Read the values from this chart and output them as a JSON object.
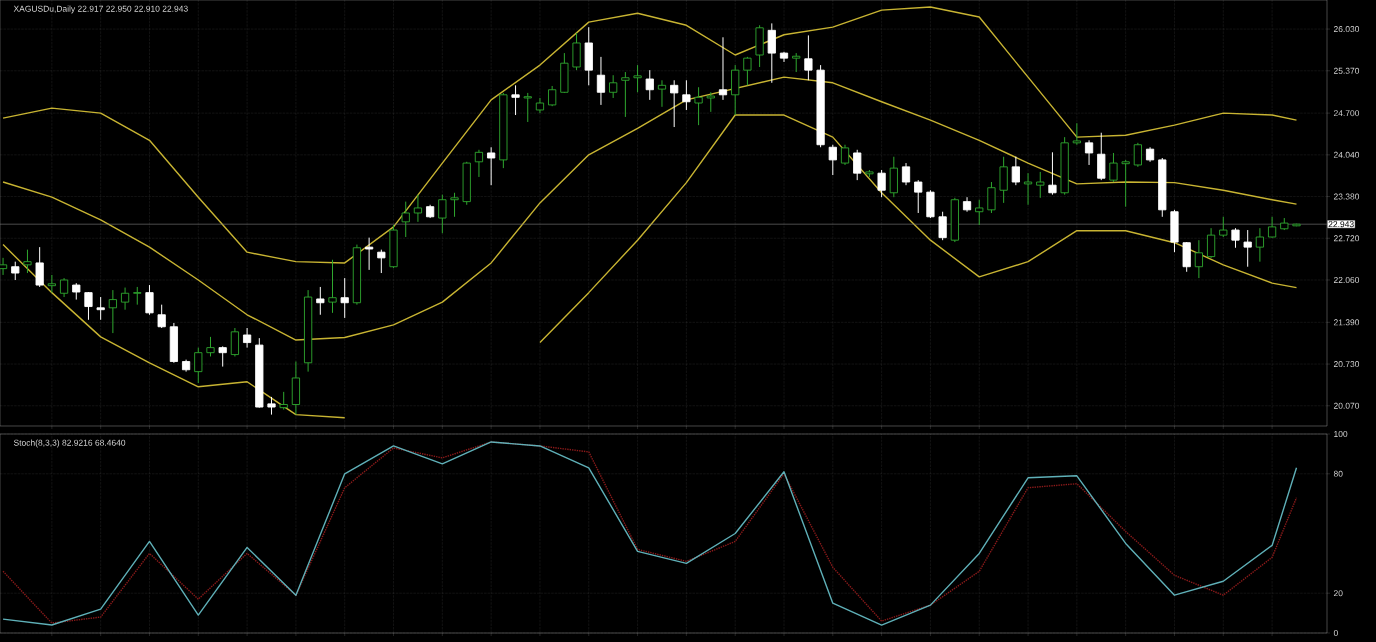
{
  "chart_data": [
    {
      "type": "candlestick",
      "title": "XAGUSDu,Daily 22.917 22.950 22.910 22.943",
      "categories": [
        null,
        null,
        null,
        null,
        null,
        null,
        null,
        null,
        null,
        null,
        null,
        null,
        null,
        null,
        null,
        null,
        null,
        null,
        null,
        null,
        null,
        null,
        null,
        null,
        null,
        null,
        null,
        null,
        null,
        null,
        null,
        null,
        null,
        null,
        null,
        null,
        null,
        null,
        null,
        null,
        null,
        null,
        null,
        null,
        null,
        null,
        null,
        null,
        null,
        null,
        null,
        null,
        null,
        null,
        null,
        null,
        null,
        null,
        null,
        null,
        null,
        null,
        null,
        null,
        null,
        null,
        null,
        null,
        null,
        null,
        null,
        null,
        null,
        null,
        null,
        null,
        null,
        null,
        null,
        null,
        null,
        null,
        null,
        null,
        null,
        null,
        null,
        null,
        null,
        null,
        null,
        null,
        null,
        null,
        null,
        null,
        null,
        null,
        null,
        null,
        null,
        null,
        null,
        null,
        null,
        null,
        null
      ],
      "ohlc": [
        [
          22.24,
          22.41,
          22.14,
          22.3
        ],
        [
          22.27,
          22.35,
          22.06,
          22.17
        ],
        [
          22.3,
          22.54,
          22.17,
          22.35
        ],
        [
          22.33,
          22.58,
          21.95,
          21.98
        ],
        [
          21.97,
          22.14,
          21.86,
          22.0
        ],
        [
          21.85,
          22.09,
          21.79,
          22.06
        ],
        [
          21.98,
          22.01,
          21.75,
          21.87
        ],
        [
          21.86,
          21.87,
          21.43,
          21.64
        ],
        [
          21.62,
          21.79,
          21.43,
          21.59
        ],
        [
          21.62,
          21.9,
          21.22,
          21.75
        ],
        [
          21.71,
          21.94,
          21.59,
          21.85
        ],
        [
          21.85,
          21.95,
          21.67,
          21.86
        ],
        [
          21.86,
          21.98,
          21.51,
          21.54
        ],
        [
          21.51,
          21.67,
          21.3,
          21.32
        ],
        [
          21.32,
          21.38,
          20.75,
          20.77
        ],
        [
          20.77,
          20.8,
          20.61,
          20.64
        ],
        [
          20.61,
          20.99,
          20.43,
          20.91
        ],
        [
          20.91,
          21.16,
          20.85,
          20.99
        ],
        [
          20.99,
          21.01,
          20.69,
          20.91
        ],
        [
          20.88,
          21.3,
          20.85,
          21.24
        ],
        [
          21.19,
          21.3,
          20.99,
          21.07
        ],
        [
          21.03,
          21.14,
          20.04,
          20.05
        ],
        [
          20.1,
          20.21,
          19.93,
          20.05
        ],
        [
          20.04,
          20.29,
          20.01,
          20.09
        ],
        [
          20.09,
          20.77,
          19.93,
          20.51
        ],
        [
          20.75,
          21.9,
          20.61,
          21.79
        ],
        [
          21.76,
          21.95,
          21.51,
          21.7
        ],
        [
          21.71,
          22.38,
          21.54,
          21.78
        ],
        [
          21.78,
          22.09,
          21.46,
          21.7
        ],
        [
          21.7,
          22.62,
          21.67,
          22.57
        ],
        [
          22.58,
          22.73,
          22.22,
          22.55
        ],
        [
          22.5,
          22.54,
          22.17,
          22.41
        ],
        [
          22.27,
          22.93,
          22.25,
          22.85
        ],
        [
          22.98,
          23.3,
          22.74,
          23.12
        ],
        [
          23.12,
          23.41,
          22.98,
          23.2
        ],
        [
          23.22,
          23.25,
          23.04,
          23.06
        ],
        [
          23.04,
          23.41,
          22.8,
          23.33
        ],
        [
          23.33,
          23.44,
          23.06,
          23.36
        ],
        [
          23.3,
          23.93,
          23.25,
          23.91
        ],
        [
          23.93,
          24.12,
          23.69,
          24.08
        ],
        [
          24.07,
          24.16,
          23.56,
          23.99
        ],
        [
          23.96,
          25.02,
          23.83,
          24.99
        ],
        [
          24.99,
          25.14,
          24.67,
          24.95
        ],
        [
          24.94,
          25.02,
          24.56,
          24.96
        ],
        [
          24.75,
          24.94,
          24.7,
          24.86
        ],
        [
          24.83,
          25.13,
          24.81,
          25.07
        ],
        [
          25.03,
          25.65,
          25.02,
          25.49
        ],
        [
          25.43,
          25.97,
          25.38,
          25.81
        ],
        [
          25.81,
          26.06,
          25.14,
          25.38
        ],
        [
          25.3,
          25.59,
          24.83,
          25.03
        ],
        [
          25.03,
          25.3,
          24.94,
          25.18
        ],
        [
          25.22,
          25.35,
          24.64,
          25.26
        ],
        [
          25.26,
          25.46,
          25.03,
          25.29
        ],
        [
          25.24,
          25.38,
          24.91,
          25.07
        ],
        [
          25.08,
          25.22,
          24.8,
          25.14
        ],
        [
          25.14,
          25.22,
          24.48,
          25.02
        ],
        [
          24.99,
          25.22,
          24.75,
          24.88
        ],
        [
          24.86,
          25.11,
          24.51,
          24.95
        ],
        [
          24.94,
          25.03,
          24.72,
          24.97
        ],
        [
          25.07,
          25.9,
          24.91,
          24.99
        ],
        [
          24.99,
          25.46,
          24.67,
          25.38
        ],
        [
          25.38,
          25.59,
          25.14,
          25.57
        ],
        [
          25.62,
          26.09,
          25.43,
          26.05
        ],
        [
          26.01,
          26.12,
          25.18,
          25.65
        ],
        [
          25.65,
          25.67,
          25.51,
          25.57
        ],
        [
          25.57,
          25.65,
          25.35,
          25.6
        ],
        [
          25.56,
          25.93,
          25.22,
          25.38
        ],
        [
          25.38,
          25.46,
          24.16,
          24.2
        ],
        [
          24.16,
          24.2,
          23.72,
          23.96
        ],
        [
          23.91,
          24.2,
          23.88,
          24.15
        ],
        [
          24.07,
          24.12,
          23.64,
          23.75
        ],
        [
          23.74,
          23.8,
          23.69,
          23.77
        ],
        [
          23.75,
          23.8,
          23.37,
          23.48
        ],
        [
          23.44,
          24.01,
          23.37,
          23.83
        ],
        [
          23.85,
          23.91,
          23.56,
          23.61
        ],
        [
          23.61,
          23.64,
          23.12,
          23.45
        ],
        [
          23.45,
          23.48,
          23.04,
          23.06
        ],
        [
          23.06,
          23.14,
          22.69,
          22.73
        ],
        [
          22.69,
          23.36,
          22.66,
          23.33
        ],
        [
          23.3,
          23.37,
          23.14,
          23.17
        ],
        [
          23.14,
          23.33,
          22.93,
          23.2
        ],
        [
          23.17,
          23.61,
          23.12,
          23.52
        ],
        [
          23.48,
          24.01,
          23.28,
          23.85
        ],
        [
          23.85,
          24.01,
          23.56,
          23.61
        ],
        [
          23.58,
          23.75,
          23.25,
          23.61
        ],
        [
          23.56,
          23.77,
          23.36,
          23.61
        ],
        [
          23.56,
          24.08,
          23.41,
          23.44
        ],
        [
          23.44,
          24.32,
          23.41,
          24.23
        ],
        [
          24.23,
          24.54,
          24.2,
          24.26
        ],
        [
          24.23,
          24.27,
          23.88,
          24.07
        ],
        [
          24.05,
          24.39,
          23.64,
          23.67
        ],
        [
          23.64,
          24.07,
          23.61,
          23.91
        ],
        [
          23.9,
          23.96,
          23.22,
          23.93
        ],
        [
          23.88,
          24.23,
          23.85,
          24.2
        ],
        [
          24.13,
          24.16,
          23.93,
          23.96
        ],
        [
          23.96,
          23.99,
          23.06,
          23.17
        ],
        [
          23.14,
          23.17,
          22.5,
          22.66
        ],
        [
          22.65,
          22.66,
          22.19,
          22.27
        ],
        [
          22.27,
          22.69,
          22.09,
          22.49
        ],
        [
          22.43,
          22.88,
          22.41,
          22.77
        ],
        [
          22.77,
          23.06,
          22.74,
          22.85
        ],
        [
          22.85,
          22.88,
          22.57,
          22.69
        ],
        [
          22.66,
          22.85,
          22.27,
          22.58
        ],
        [
          22.58,
          22.88,
          22.35,
          22.74
        ],
        [
          22.74,
          23.06,
          22.73,
          22.9
        ],
        [
          22.87,
          23.04,
          22.85,
          22.96
        ],
        [
          22.917,
          22.95,
          22.91,
          22.943
        ]
      ],
      "series": [
        {
          "type": "line",
          "color": "#c8b432",
          "values": [
            24.62,
            null,
            null,
            null,
            24.78,
            null,
            null,
            null,
            24.7,
            null,
            null,
            null,
            24.27,
            null,
            null,
            null,
            23.37,
            null,
            null,
            null,
            22.5,
            null,
            null,
            null,
            22.35,
            null,
            null,
            null,
            22.33,
            null,
            null,
            null,
            22.9,
            null,
            null,
            null,
            23.91,
            null,
            null,
            null,
            24.91,
            null,
            null,
            null,
            25.46,
            null,
            null,
            null,
            26.14,
            null,
            null,
            null,
            26.28,
            null,
            null,
            null,
            26.09,
            null,
            null,
            null,
            25.62,
            null,
            null,
            null,
            25.94,
            null,
            null,
            null,
            26.06,
            null,
            null,
            null,
            26.33,
            null,
            null,
            null,
            26.38,
            null,
            null,
            null,
            26.22,
            null,
            null,
            null,
            25.27,
            null,
            null,
            null,
            24.32,
            null,
            null,
            null,
            24.35,
            null,
            null,
            null,
            24.51,
            null,
            null,
            null,
            24.7,
            null,
            null,
            null,
            24.67,
            null,
            24.59
          ]
        },
        {
          "type": "line",
          "color": "#c8b432",
          "values": [
            23.61,
            null,
            null,
            null,
            23.37,
            null,
            null,
            null,
            23.01,
            null,
            null,
            null,
            22.58,
            null,
            null,
            null,
            22.06,
            null,
            null,
            null,
            21.51,
            null,
            null,
            null,
            21.11,
            null,
            null,
            null,
            21.15,
            null,
            null,
            null,
            21.35,
            null,
            null,
            null,
            21.71,
            null,
            null,
            null,
            22.33,
            null,
            null,
            null,
            23.28,
            null,
            null,
            null,
            24.04,
            null,
            null,
            null,
            24.46,
            null,
            null,
            null,
            24.91,
            null,
            null,
            null,
            null,
            null,
            null,
            null,
            25.27,
            null,
            null,
            null,
            25.18,
            null,
            null,
            null,
            24.88,
            null,
            null,
            null,
            24.59,
            null,
            null,
            null,
            24.27,
            null,
            null,
            null,
            23.91,
            null,
            null,
            null,
            23.58,
            null,
            null,
            null,
            23.61,
            null,
            null,
            null,
            23.6,
            null,
            null,
            null,
            23.48,
            null,
            null,
            null,
            23.33,
            null,
            23.26
          ]
        },
        {
          "type": "line",
          "color": "#c8b432",
          "values": [
            22.62,
            null,
            null,
            null,
            21.86,
            null,
            null,
            null,
            21.16,
            null,
            null,
            null,
            20.75,
            null,
            null,
            null,
            20.37,
            null,
            null,
            null,
            20.45,
            null,
            null,
            null,
            19.93,
            null,
            null,
            null,
            19.88,
            null,
            null,
            null,
            null,
            null,
            null,
            null,
            null,
            null,
            null,
            null,
            null,
            null,
            null,
            null,
            null,
            null,
            null,
            null,
            null,
            null,
            null,
            null,
            null,
            null,
            null,
            null,
            null,
            null,
            null,
            null,
            null,
            null,
            null,
            null,
            null,
            null,
            null,
            null,
            null,
            null,
            null,
            null,
            null,
            null,
            null,
            null,
            null,
            null,
            null,
            null,
            null,
            null,
            null,
            null,
            null,
            null,
            null,
            null,
            null,
            null,
            null,
            null,
            null,
            null,
            null,
            null,
            null,
            null,
            null,
            null,
            null,
            null,
            null,
            null,
            null,
            null,
            null
          ]
        },
        {
          "type": "line",
          "color": "#c8b432",
          "values": [
            null,
            null,
            null,
            null,
            null,
            null,
            null,
            null,
            null,
            null,
            null,
            null,
            null,
            null,
            null,
            null,
            null,
            null,
            null,
            null,
            null,
            null,
            null,
            null,
            null,
            null,
            null,
            null,
            null,
            null,
            null,
            null,
            null,
            null,
            null,
            null,
            null,
            null,
            null,
            null,
            null,
            null,
            null,
            null,
            21.07,
            null,
            null,
            null,
            21.86,
            null,
            null,
            null,
            22.69,
            null,
            null,
            null,
            23.6,
            null,
            null,
            null,
            24.67,
            null,
            null,
            null,
            24.67,
            null,
            null,
            null,
            24.32,
            null,
            null,
            null,
            23.44,
            null,
            null,
            null,
            22.69,
            null,
            null,
            null,
            22.11,
            null,
            null,
            null,
            22.35,
            null,
            null,
            null,
            22.84,
            null,
            null,
            null,
            22.84,
            null,
            null,
            null,
            22.65,
            null,
            null,
            null,
            22.3,
            null,
            null,
            null,
            22.01,
            null,
            21.94
          ]
        }
      ],
      "ylim": [
        19.75,
        26.49
      ],
      "yticks": [
        {
          "value": 26.03,
          "label": "26.030"
        },
        {
          "value": 25.37,
          "label": "25.370"
        },
        {
          "value": 24.7,
          "label": "24.700"
        },
        {
          "value": 24.04,
          "label": "24.040"
        },
        {
          "value": 23.38,
          "label": "23.380"
        },
        {
          "value": 22.72,
          "label": "22.720"
        },
        {
          "value": 22.06,
          "label": "22.060"
        },
        {
          "value": 21.39,
          "label": "21.390"
        },
        {
          "value": 20.73,
          "label": "20.730"
        },
        {
          "value": 20.07,
          "label": "20.070"
        }
      ],
      "grid": true,
      "ref_lines": [
        {
          "axis": "y",
          "value": 22.943,
          "label": "22.943",
          "color": "#808080"
        }
      ]
    },
    {
      "type": "line",
      "title": "Stoch(8,3,3) 82.9216 68.4640",
      "categories": [
        null,
        null,
        null,
        null,
        null,
        null,
        null,
        null,
        null,
        null,
        null,
        null,
        null,
        null,
        null,
        null,
        null,
        null,
        null,
        null,
        null,
        null,
        null,
        null,
        null,
        null,
        null,
        null,
        null,
        null,
        null,
        null,
        null,
        null,
        null,
        null,
        null,
        null,
        null,
        null,
        null,
        null,
        null,
        null,
        null,
        null,
        null,
        null,
        null,
        null,
        null,
        null,
        null,
        null,
        null,
        null,
        null,
        null,
        null,
        null,
        null,
        null,
        null,
        null,
        null,
        null,
        null,
        null,
        null,
        null,
        null,
        null,
        null,
        null,
        null,
        null,
        null,
        null,
        null,
        null,
        null,
        null,
        null,
        null,
        null,
        null,
        null,
        null,
        null,
        null,
        null,
        null,
        null,
        null,
        null,
        null,
        null,
        null,
        null,
        null,
        null,
        null,
        null,
        null,
        null,
        null,
        null
      ],
      "series": [
        {
          "color": "#8b1a1a",
          "line_style": "dotted",
          "values": [
            31,
            null,
            null,
            null,
            5,
            null,
            null,
            null,
            8,
            null,
            null,
            null,
            40,
            null,
            null,
            null,
            17,
            null,
            null,
            null,
            40,
            null,
            null,
            null,
            19,
            null,
            null,
            null,
            73,
            null,
            null,
            null,
            93,
            null,
            null,
            null,
            88,
            null,
            null,
            null,
            96,
            null,
            null,
            null,
            94,
            null,
            null,
            null,
            91,
            null,
            null,
            null,
            42,
            null,
            null,
            null,
            36,
            null,
            null,
            null,
            46,
            null,
            null,
            null,
            80,
            null,
            null,
            null,
            33,
            null,
            null,
            null,
            6,
            null,
            null,
            null,
            14,
            null,
            null,
            null,
            31,
            null,
            null,
            null,
            73,
            null,
            null,
            null,
            75,
            null,
            null,
            null,
            51,
            null,
            null,
            null,
            29,
            null,
            null,
            null,
            19,
            null,
            null,
            null,
            38,
            null,
            68
          ]
        },
        {
          "color": "#5fb0b8",
          "values": [
            7,
            null,
            null,
            null,
            4,
            null,
            null,
            null,
            12,
            null,
            null,
            null,
            46,
            null,
            null,
            null,
            9,
            null,
            null,
            null,
            43,
            null,
            null,
            null,
            19,
            null,
            null,
            null,
            80,
            null,
            null,
            null,
            94,
            null,
            null,
            null,
            85,
            null,
            null,
            null,
            96,
            null,
            null,
            null,
            94,
            null,
            null,
            null,
            83,
            null,
            null,
            null,
            41,
            null,
            null,
            null,
            35,
            null,
            null,
            null,
            50,
            null,
            null,
            null,
            81,
            null,
            null,
            null,
            15,
            null,
            null,
            null,
            4,
            null,
            null,
            null,
            14,
            null,
            null,
            null,
            40,
            null,
            null,
            null,
            78,
            null,
            null,
            null,
            79,
            null,
            null,
            null,
            45,
            null,
            null,
            null,
            19,
            null,
            null,
            null,
            26,
            null,
            null,
            null,
            44,
            null,
            83
          ]
        }
      ],
      "ylim": [
        0,
        100
      ],
      "yticks": [
        0,
        20,
        80,
        100
      ],
      "grid": true
    }
  ]
}
